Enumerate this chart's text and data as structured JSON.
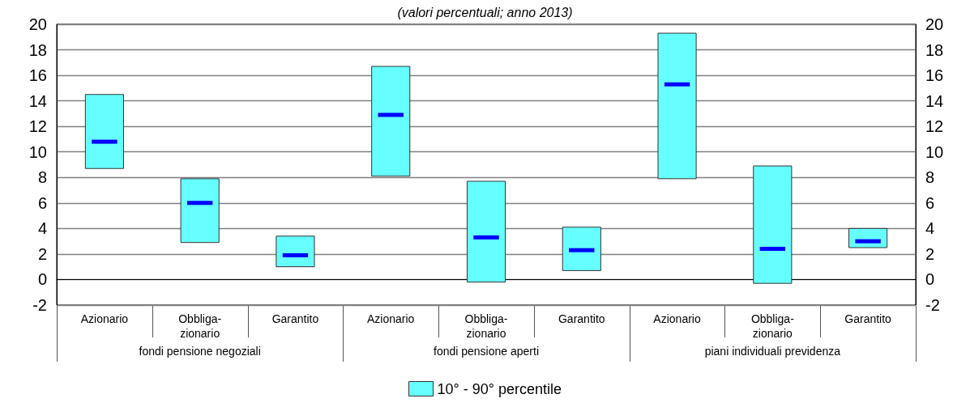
{
  "chart_data": {
    "type": "box",
    "subtitle": "(valori percentuali; anno 2013)",
    "categories": [
      "Azionario",
      "Obbliga-\nzionario",
      "Garantito",
      "Azionario",
      "Obbliga-\nzionario",
      "Garantito",
      "Azionario",
      "Obbliga-\nzionario",
      "Garantito"
    ],
    "annotations": [
      "fondi pensione negoziali",
      "fondi pensione aperti",
      "piani individuali previdenza"
    ],
    "series": [
      {
        "name": "10° - 90° percentile",
        "color": "#66ffff",
        "boxes": [
          {
            "low": 8.7,
            "q1": 8.7,
            "median": 10.8,
            "q3": 14.5,
            "high": 14.5
          },
          {
            "low": 2.9,
            "q1": 2.9,
            "median": 6.0,
            "q3": 7.9,
            "high": 7.9
          },
          {
            "low": 1.0,
            "q1": 1.0,
            "median": 1.9,
            "q3": 3.4,
            "high": 3.4
          },
          {
            "low": 8.1,
            "q1": 8.1,
            "median": 12.9,
            "q3": 16.7,
            "high": 16.7
          },
          {
            "low": -0.2,
            "q1": -0.2,
            "median": 3.3,
            "q3": 7.7,
            "high": 7.7
          },
          {
            "low": 0.7,
            "q1": 0.7,
            "median": 2.3,
            "q3": 4.1,
            "high": 4.1
          },
          {
            "low": 7.9,
            "q1": 7.9,
            "median": 15.3,
            "q3": 19.3,
            "high": 19.3
          },
          {
            "low": -0.3,
            "q1": -0.3,
            "median": 2.4,
            "q3": 8.9,
            "high": 8.9
          },
          {
            "low": 2.5,
            "q1": 2.5,
            "median": 3.0,
            "q3": 4.0,
            "high": 4.0
          }
        ]
      }
    ],
    "ylim": [
      -2,
      20
    ],
    "yticks": [
      -2,
      0,
      2,
      4,
      6,
      8,
      10,
      12,
      14,
      16,
      18,
      20
    ],
    "y2lim": [
      -2,
      20
    ],
    "y2ticks": [
      -2,
      0,
      2,
      4,
      6,
      8,
      10,
      12,
      14,
      16,
      18,
      20
    ],
    "grid": "y",
    "legend": "bottom"
  }
}
